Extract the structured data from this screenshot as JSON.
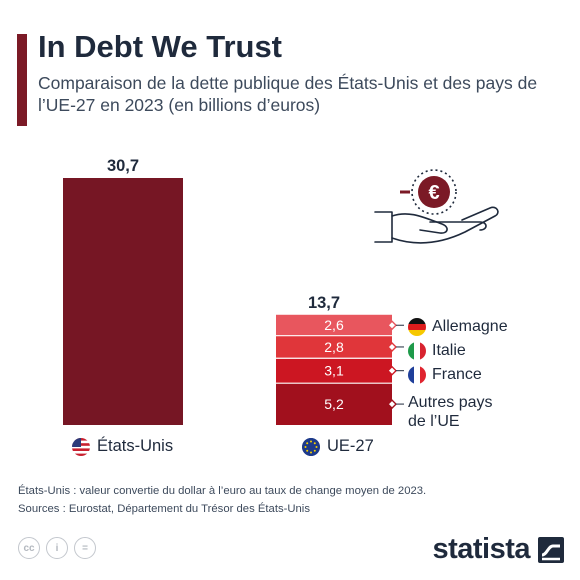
{
  "header": {
    "title": "In Debt We Trust",
    "subtitle": "Comparaison de la dette publique des États-Unis et des pays de l’UE-27 en 2023 (en billions d’euros)"
  },
  "colors": {
    "us_bar": "#761624",
    "allemagne": "#e8565e",
    "italie": "#e0363a",
    "france": "#cc1622",
    "autres": "#a1101d",
    "accent": "#7b1a26"
  },
  "icons": [
    "euro-coin-icon",
    "open-hand-icon",
    "us-flag-icon",
    "eu-flag-icon",
    "germany-flag-icon",
    "italy-flag-icon",
    "france-flag-icon"
  ],
  "chart_data": {
    "type": "bar",
    "stacked": true,
    "ylim": [
      0,
      30.7
    ],
    "categories": [
      "États-Unis",
      "UE-27"
    ],
    "totals": [
      "30,7",
      "13,7"
    ],
    "us": {
      "value": 30.7,
      "label": "30,7"
    },
    "eu_segments": [
      {
        "name": "Allemagne",
        "value": 2.6,
        "label": "2,6"
      },
      {
        "name": "Italie",
        "value": 2.8,
        "label": "2,8"
      },
      {
        "name": "France",
        "value": 3.1,
        "label": "3,1"
      },
      {
        "name": "Autres pays de l’UE",
        "value": 5.2,
        "label": "5,2"
      }
    ]
  },
  "legend": {
    "allemagne": "Allemagne",
    "italie": "Italie",
    "france": "France",
    "autres_line1": "Autres pays",
    "autres_line2": "de l’UE"
  },
  "footer": {
    "note": "États-Unis : valeur convertie du dollar à l’euro au taux de change moyen de 2023.",
    "sources": "Sources : Eurostat, Département du Trésor des États-Unis",
    "cc_icons": [
      "cc",
      "i",
      "="
    ],
    "brand": "statista"
  }
}
